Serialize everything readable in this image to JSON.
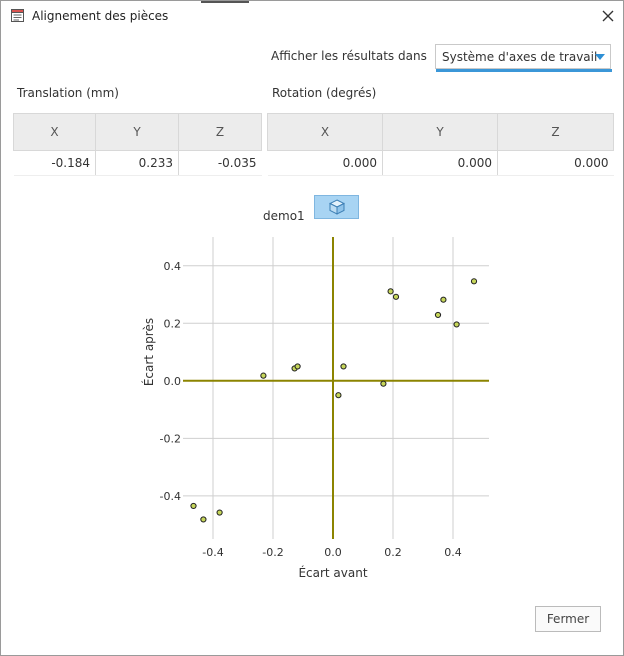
{
  "window": {
    "title": "Alignement des pièces"
  },
  "results": {
    "label": "Afficher les résultats dans",
    "selected": "Système d'axes de travail"
  },
  "translation": {
    "label": "Translation (mm)",
    "headers": [
      "X",
      "Y",
      "Z"
    ],
    "values": [
      "-0.184",
      "0.233",
      "-0.035"
    ]
  },
  "rotation": {
    "label": "Rotation (degrés)",
    "headers": [
      "X",
      "Y",
      "Z"
    ],
    "values": [
      "0.000",
      "0.000",
      "0.000"
    ]
  },
  "demo": {
    "label": "demo1",
    "button_icon": "cube-icon"
  },
  "chart_data": {
    "type": "scatter",
    "xlabel": "Écart avant",
    "ylabel": "Écart après",
    "xlim": [
      -0.5,
      0.52
    ],
    "ylim": [
      -0.55,
      0.5
    ],
    "xticks": [
      -0.4,
      -0.2,
      0.0,
      0.2,
      0.4
    ],
    "yticks": [
      -0.4,
      -0.2,
      0.0,
      0.2,
      0.4
    ],
    "xtick_labels": [
      "-0.4",
      "-0.2",
      "0.0",
      "0.2",
      "0.4"
    ],
    "ytick_labels": [
      "-0.4",
      "-0.2",
      "0.0",
      "0.2",
      "0.4"
    ],
    "grid": true,
    "axis_color": "#8c8400",
    "point_color": "#c6d65a",
    "points": [
      {
        "x": -0.232,
        "y": 0.018
      },
      {
        "x": -0.128,
        "y": 0.043
      },
      {
        "x": -0.118,
        "y": 0.05
      },
      {
        "x": 0.035,
        "y": 0.05
      },
      {
        "x": 0.018,
        "y": -0.05
      },
      {
        "x": 0.168,
        "y": -0.01
      },
      {
        "x": 0.192,
        "y": 0.311
      },
      {
        "x": 0.21,
        "y": 0.292
      },
      {
        "x": 0.35,
        "y": 0.229
      },
      {
        "x": 0.368,
        "y": 0.282
      },
      {
        "x": 0.412,
        "y": 0.196
      },
      {
        "x": 0.47,
        "y": 0.346
      },
      {
        "x": -0.465,
        "y": -0.435
      },
      {
        "x": -0.432,
        "y": -0.482
      },
      {
        "x": -0.378,
        "y": -0.458
      }
    ]
  },
  "footer": {
    "close_label": "Fermer"
  }
}
